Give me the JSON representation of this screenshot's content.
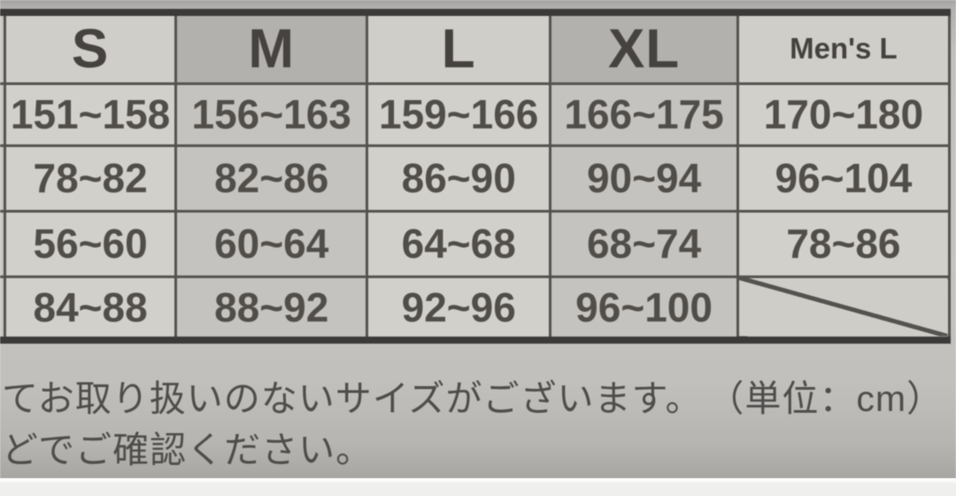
{
  "colors": {
    "shaded_column_header_bg": "#b3b1ad",
    "shaded_column_cell_bg": "#c5c3bf",
    "light_column_cell_bg": "#d2d0cb",
    "table_border": "#54524e",
    "text": "#4a4743"
  },
  "size_chart": {
    "columns": [
      {
        "label": "S"
      },
      {
        "label": "M"
      },
      {
        "label": "L"
      },
      {
        "label": "XL"
      },
      {
        "label": "Men's L"
      }
    ],
    "rows": [
      {
        "values": [
          "151~158",
          "156~163",
          "159~166",
          "166~175",
          "170~180"
        ]
      },
      {
        "values": [
          "78~82",
          "82~86",
          "86~90",
          "90~94",
          "96~104"
        ]
      },
      {
        "values": [
          "56~60",
          "60~64",
          "64~68",
          "68~74",
          "78~86"
        ]
      },
      {
        "values": [
          "84~88",
          "88~92",
          "92~96",
          "96~100",
          ""
        ]
      }
    ],
    "empty_cell": "diagonal-slash"
  },
  "footer": {
    "line1": "てお取り扱いのないサイズがございます。",
    "unit": "（単位：cm）",
    "line2": "どでご確認ください。"
  }
}
